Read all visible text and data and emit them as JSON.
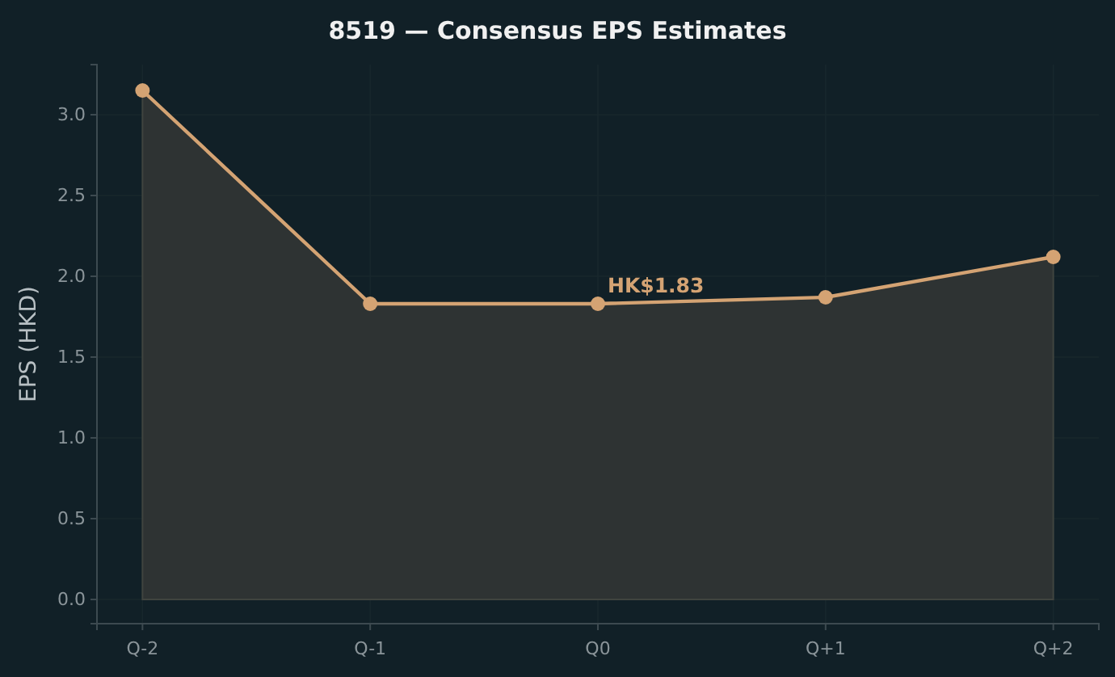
{
  "chart_data": {
    "type": "area",
    "title": "8519 — Consensus EPS Estimates",
    "ylabel": "EPS (HKD)",
    "categories": [
      "Q-2",
      "Q-1",
      "Q0",
      "Q+1",
      "Q+2"
    ],
    "series": [
      {
        "color": "#d4a373",
        "values": [
          3.15,
          1.83,
          1.83,
          1.87,
          2.12
        ]
      }
    ],
    "ylim": [
      -0.15,
      3.31
    ],
    "yticks": [
      {
        "value": 0,
        "label": "0.0"
      },
      {
        "value": 0.5,
        "label": "0.5"
      },
      {
        "value": 1,
        "label": "1.0"
      },
      {
        "value": 1.5,
        "label": "1.5"
      },
      {
        "value": 2,
        "label": "2.0"
      },
      {
        "value": 2.5,
        "label": "2.5"
      },
      {
        "value": 3,
        "label": "3.0"
      }
    ],
    "annotations": [
      {
        "text": "HK$1.83",
        "x": "Q0",
        "y": 1.83
      }
    ],
    "grid": true,
    "marker": "circle",
    "line_style": "solid"
  }
}
